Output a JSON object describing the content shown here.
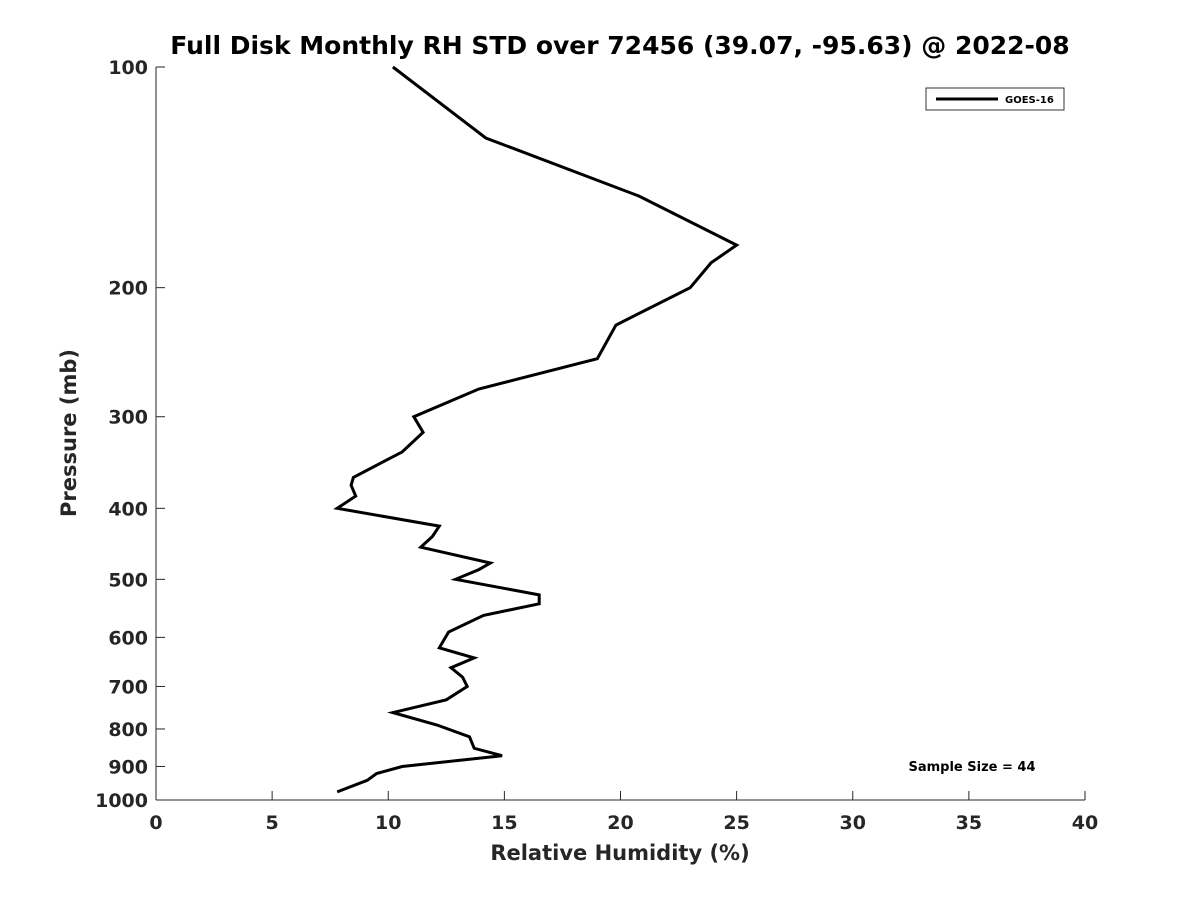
{
  "chart_data": {
    "type": "line",
    "title": "Full Disk Monthly RH STD over 72456 (39.07, -95.63) @ 2022-08",
    "xlabel": "Relative Humidity (%)",
    "ylabel": "Pressure (mb)",
    "xlim": [
      0,
      40
    ],
    "ylim": [
      100,
      1000
    ],
    "yscale": "log",
    "y_reversed": true,
    "xticks": [
      0,
      5,
      10,
      15,
      20,
      25,
      30,
      35,
      40
    ],
    "xtick_labels": [
      "0",
      "5",
      "10",
      "15",
      "20",
      "25",
      "30",
      "35",
      "40"
    ],
    "yticks": [
      100,
      200,
      300,
      400,
      500,
      600,
      700,
      800,
      900,
      1000
    ],
    "ytick_labels": [
      "100",
      "200",
      "300",
      "400",
      "500",
      "600",
      "700",
      "800",
      "900",
      "1000"
    ],
    "grid": false,
    "legend_position": "top-right",
    "series": [
      {
        "name": "GOES-16",
        "color": "#000000",
        "points": [
          [
            10.2,
            100
          ],
          [
            14.2,
            125
          ],
          [
            20.8,
            150
          ],
          [
            25.0,
            175
          ],
          [
            23.9,
            185
          ],
          [
            23.0,
            200
          ],
          [
            19.8,
            225
          ],
          [
            19.0,
            250
          ],
          [
            13.9,
            275
          ],
          [
            11.1,
            300
          ],
          [
            11.5,
            315
          ],
          [
            10.6,
            335
          ],
          [
            8.5,
            363
          ],
          [
            8.4,
            372
          ],
          [
            8.6,
            385
          ],
          [
            7.8,
            400
          ],
          [
            12.2,
            423
          ],
          [
            11.9,
            437
          ],
          [
            11.4,
            452
          ],
          [
            14.4,
            475
          ],
          [
            13.9,
            485
          ],
          [
            12.9,
            500
          ],
          [
            16.5,
            525
          ],
          [
            16.5,
            540
          ],
          [
            14.1,
            560
          ],
          [
            12.6,
            590
          ],
          [
            12.2,
            620
          ],
          [
            13.7,
            640
          ],
          [
            12.7,
            660
          ],
          [
            13.2,
            680
          ],
          [
            13.4,
            700
          ],
          [
            12.5,
            730
          ],
          [
            10.2,
            760
          ],
          [
            12.1,
            790
          ],
          [
            13.5,
            820
          ],
          [
            13.7,
            850
          ],
          [
            14.9,
            870
          ],
          [
            10.6,
            900
          ],
          [
            9.5,
            920
          ],
          [
            9.1,
            940
          ],
          [
            7.8,
            975
          ]
        ]
      }
    ],
    "annotation": "Sample Size = 44"
  }
}
